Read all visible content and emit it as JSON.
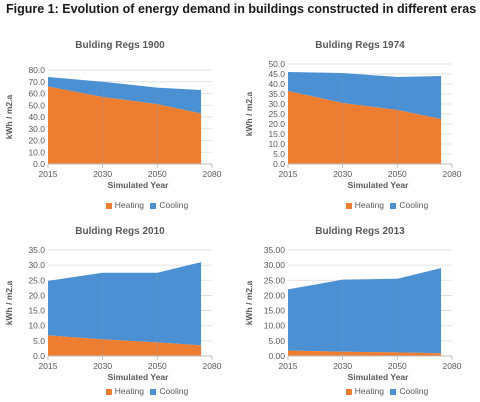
{
  "figure": {
    "title": "Figure 1: Evolution of energy demand in buildings constructed in different eras"
  },
  "colors": {
    "heating": "#ED7D31",
    "cooling": "#4A90D2",
    "grid": "#D9D9D9",
    "axis_text": "#595959"
  },
  "chart_data": [
    {
      "type": "area",
      "title": "Bulding Regs 1900",
      "xlabel": "Simulated Year",
      "ylabel": "kWh / m2.a",
      "x_ticks": [
        "2015",
        "2030",
        "2050",
        "2080"
      ],
      "y_ticks": [
        "0.0",
        "10.0",
        "20.0",
        "30.0",
        "40.0",
        "50.0",
        "60.0",
        "70.0",
        "80.0"
      ],
      "ylim": [
        0,
        80
      ],
      "grid": true,
      "legend_position": "bottom",
      "stacked": true,
      "series": [
        {
          "name": "Heating",
          "values": [
            66,
            57,
            51,
            43
          ]
        },
        {
          "name": "Cooling",
          "values": [
            8,
            13,
            14,
            20
          ]
        }
      ]
    },
    {
      "type": "area",
      "title": "Bulding Regs 1974",
      "xlabel": "Simulated Year",
      "ylabel": "kWh / m2.a",
      "x_ticks": [
        "2015",
        "2030",
        "2050",
        "2080"
      ],
      "y_ticks": [
        "0.0",
        "5.0",
        "10.0",
        "15.0",
        "20.0",
        "25.0",
        "30.0",
        "35.0",
        "40.0",
        "45.0",
        "50.0"
      ],
      "ylim": [
        0,
        50
      ],
      "grid": true,
      "legend_position": "bottom",
      "stacked": true,
      "series": [
        {
          "name": "Heating",
          "values": [
            36.5,
            30.5,
            27,
            22.5
          ]
        },
        {
          "name": "Cooling",
          "values": [
            9.5,
            15,
            16.5,
            21.5
          ]
        }
      ]
    },
    {
      "type": "area",
      "title": "Bulding Regs  2010",
      "xlabel": "Simulated Year",
      "ylabel": "kWh / m2.a",
      "x_ticks": [
        "2015",
        "2030",
        "2050",
        "2080"
      ],
      "y_ticks": [
        "0.0",
        "5.0",
        "10.0",
        "15.0",
        "20.0",
        "25.0",
        "30.0",
        "35.0"
      ],
      "ylim": [
        0,
        35
      ],
      "grid": true,
      "legend_position": "bottom",
      "stacked": true,
      "series": [
        {
          "name": "Heating",
          "values": [
            6.8,
            5.5,
            4.5,
            3.5
          ]
        },
        {
          "name": "Cooling",
          "values": [
            18,
            22,
            23,
            27.5
          ]
        }
      ]
    },
    {
      "type": "area",
      "title": "Bulding Regs 2013",
      "xlabel": "Simulated Year",
      "ylabel": "kWh / m2.a",
      "x_ticks": [
        "2015",
        "2030",
        "2050",
        "2080"
      ],
      "y_ticks": [
        "0.00",
        "5.00",
        "10.00",
        "15.00",
        "20.00",
        "25.00",
        "30.00",
        "35.00"
      ],
      "ylim": [
        0,
        35
      ],
      "grid": true,
      "legend_position": "bottom",
      "stacked": true,
      "series": [
        {
          "name": "Heating",
          "values": [
            1.8,
            1.4,
            1.2,
            0.9
          ]
        },
        {
          "name": "Cooling",
          "values": [
            20.2,
            23.8,
            24.3,
            28.1
          ]
        }
      ]
    }
  ]
}
